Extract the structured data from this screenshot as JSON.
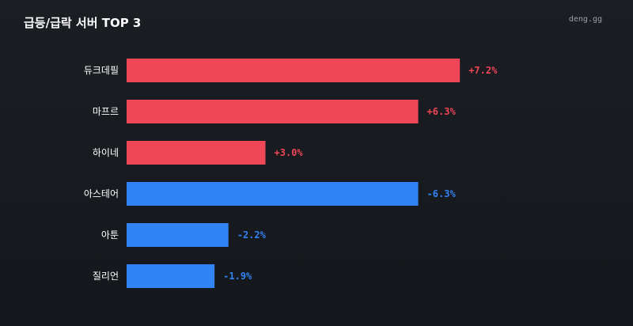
{
  "header": {
    "title": "급등/급락 서버 TOP 3",
    "brand": "deng.gg"
  },
  "colors": {
    "positive": "#ef4658",
    "negative": "#3283f5",
    "background": "#16191d"
  },
  "chart_data": {
    "type": "bar",
    "orientation": "horizontal",
    "title": "급등/급락 서버 TOP 3",
    "categories": [
      "듀크데필",
      "마프르",
      "하이네",
      "아스테어",
      "아툰",
      "질리언"
    ],
    "values": [
      7.2,
      6.3,
      3.0,
      -6.3,
      -2.2,
      -1.9
    ],
    "value_labels": [
      "+7.2%",
      "+6.3%",
      "+3.0%",
      "-6.3%",
      "-2.2%",
      "-1.9%"
    ],
    "unit": "%",
    "bar_length": "absolute value",
    "grid": false,
    "legend": "none"
  }
}
